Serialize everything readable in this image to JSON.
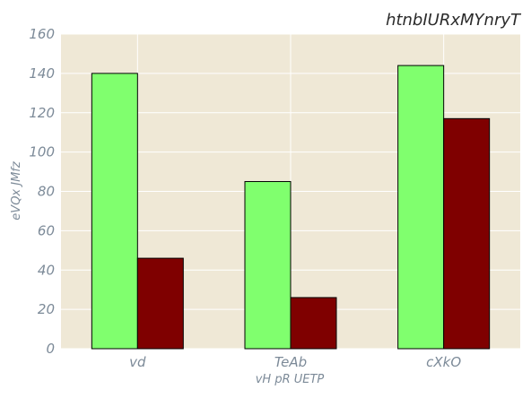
{
  "chart_data": {
    "type": "bar",
    "title": "htnbIURxMYnryT",
    "xlabel": "vH  pR UETP",
    "ylabel": "eVQx JMfz",
    "categories": [
      "vd",
      "TeAb",
      "cXkO"
    ],
    "series": [
      {
        "values": [
          140,
          85,
          144
        ],
        "color": "#80ff6e"
      },
      {
        "values": [
          46,
          26,
          117
        ],
        "color": "#7f0000"
      }
    ],
    "ylim": [
      0,
      160
    ],
    "yticks": [
      0,
      20,
      40,
      60,
      80,
      100,
      120,
      140,
      160
    ],
    "grid": true,
    "legend": "none"
  },
  "colors": {
    "plot_background": "#efe8d6",
    "grid": "#ffffff",
    "bar_edge": "#000000"
  }
}
